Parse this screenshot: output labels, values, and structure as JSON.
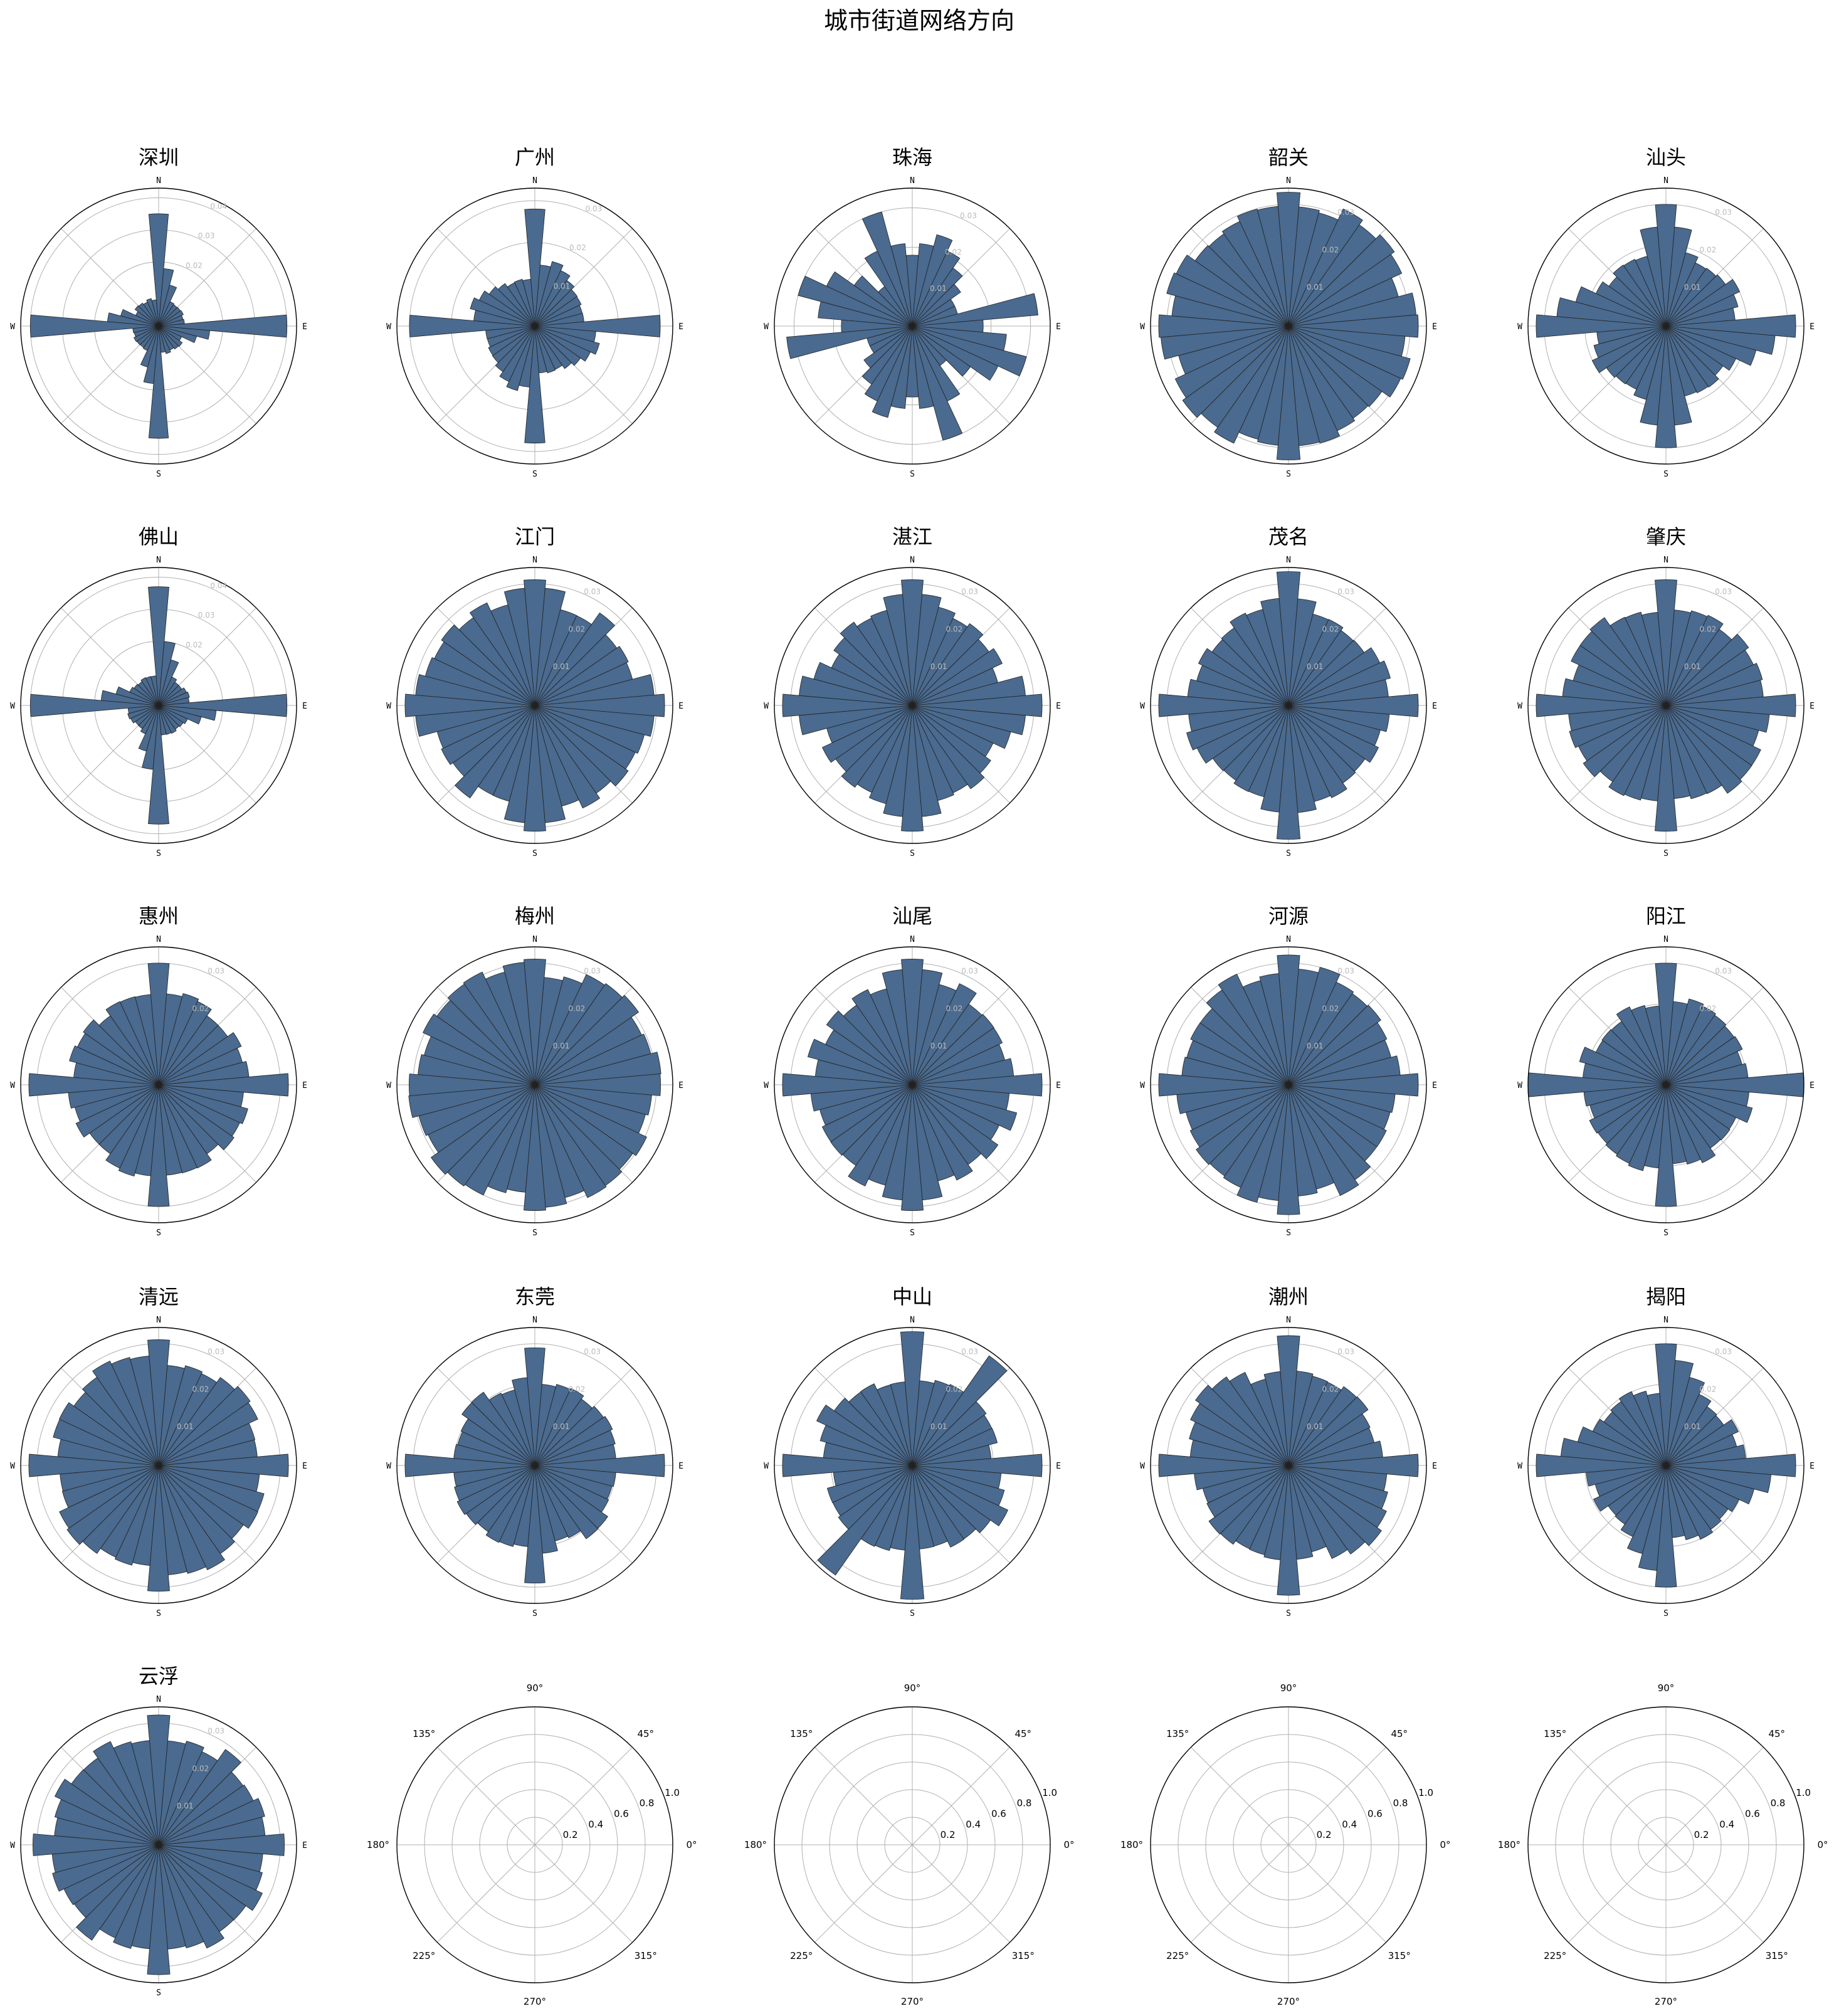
{
  "suptitle": "城市街道网络方向",
  "colors": {
    "bar_fill": "#4a6a8f",
    "bar_edge": "#222222",
    "grid": "#b0b0b0",
    "frame": "#000000",
    "radial_label": "#bbbbbb"
  },
  "compass_labels": [
    "N",
    "E",
    "S",
    "W"
  ],
  "empty_axis": {
    "angle_ticks": [
      "0°",
      "45°",
      "90°",
      "135°",
      "180°",
      "225°",
      "270°",
      "315°"
    ],
    "radial_ticks": [
      "0.2",
      "0.4",
      "0.6",
      "0.8",
      "1.0"
    ]
  },
  "chart_data": [
    {
      "type": "bar",
      "city": "深圳",
      "ylim": [
        0,
        0.043
      ],
      "radial_ticks": [
        "0.02",
        "0.03",
        "0.04"
      ],
      "profile": {
        "base": 0.0085,
        "spikes": [
          [
            0,
            0.035,
            1
          ],
          [
            90,
            0.04,
            1
          ],
          [
            180,
            0.035,
            1
          ],
          [
            270,
            0.04,
            1
          ],
          [
            10,
            0.018,
            2
          ],
          [
            100,
            0.016,
            2
          ]
        ]
      }
    },
    {
      "type": "bar",
      "city": "广州",
      "ylim": [
        0,
        0.033
      ],
      "radial_ticks": [
        "0.01",
        "0.02",
        "0.03"
      ],
      "profile": {
        "base": 0.012,
        "spikes": [
          [
            0,
            0.028,
            1
          ],
          [
            90,
            0.03,
            1
          ],
          [
            180,
            0.028,
            1
          ],
          [
            270,
            0.03,
            1
          ],
          [
            20,
            0.016,
            3
          ],
          [
            110,
            0.016,
            3
          ]
        ]
      }
    },
    {
      "type": "bar",
      "city": "珠海",
      "ylim": [
        0,
        0.035
      ],
      "radial_ticks": [
        "0.01",
        "0.02",
        "0.03"
      ],
      "profile": {
        "base": 0.012,
        "spikes": [
          [
            20,
            0.024,
            4
          ],
          [
            110,
            0.03,
            3
          ],
          [
            200,
            0.024,
            4
          ],
          [
            290,
            0.03,
            3
          ],
          [
            80,
            0.032,
            1
          ],
          [
            260,
            0.032,
            1
          ],
          [
            160,
            0.03,
            2
          ],
          [
            340,
            0.03,
            2
          ]
        ]
      }
    },
    {
      "type": "bar",
      "city": "韶关",
      "ylim": [
        0,
        0.034
      ],
      "radial_ticks": [
        "0.01",
        "0.02",
        "0.03"
      ],
      "profile": {
        "base": 0.0305,
        "spikes": [
          [
            0,
            0.033,
            1
          ],
          [
            90,
            0.032,
            1
          ],
          [
            180,
            0.033,
            1
          ],
          [
            270,
            0.032,
            1
          ]
        ]
      }
    },
    {
      "type": "bar",
      "city": "汕头",
      "ylim": [
        0,
        0.034
      ],
      "radial_ticks": [
        "0.01",
        "0.02",
        "0.03"
      ],
      "profile": {
        "base": 0.019,
        "spikes": [
          [
            0,
            0.03,
            2
          ],
          [
            90,
            0.032,
            1
          ],
          [
            180,
            0.03,
            2
          ],
          [
            270,
            0.032,
            1
          ],
          [
            100,
            0.027,
            2
          ],
          [
            280,
            0.027,
            2
          ]
        ]
      }
    },
    {
      "type": "bar",
      "city": "佛山",
      "ylim": [
        0,
        0.043
      ],
      "radial_ticks": [
        "0.02",
        "0.03",
        "0.04"
      ],
      "profile": {
        "base": 0.0095,
        "spikes": [
          [
            0,
            0.037,
            1
          ],
          [
            90,
            0.04,
            1
          ],
          [
            180,
            0.037,
            1
          ],
          [
            270,
            0.04,
            1
          ],
          [
            10,
            0.02,
            2
          ],
          [
            100,
            0.018,
            2
          ]
        ]
      }
    },
    {
      "type": "bar",
      "city": "江门",
      "ylim": [
        0,
        0.034
      ],
      "radial_ticks": [
        "0.01",
        "0.02",
        "0.03"
      ],
      "profile": {
        "base": 0.027,
        "spikes": [
          [
            0,
            0.031,
            2
          ],
          [
            90,
            0.032,
            2
          ],
          [
            180,
            0.031,
            2
          ],
          [
            270,
            0.032,
            2
          ]
        ]
      }
    },
    {
      "type": "bar",
      "city": "湛江",
      "ylim": [
        0,
        0.034
      ],
      "radial_ticks": [
        "0.01",
        "0.02",
        "0.03"
      ],
      "profile": {
        "base": 0.024,
        "spikes": [
          [
            0,
            0.031,
            2
          ],
          [
            90,
            0.032,
            2
          ],
          [
            180,
            0.031,
            2
          ],
          [
            270,
            0.032,
            2
          ]
        ]
      }
    },
    {
      "type": "bar",
      "city": "茂名",
      "ylim": [
        0,
        0.034
      ],
      "radial_ticks": [
        "0.01",
        "0.02",
        "0.03"
      ],
      "profile": {
        "base": 0.025,
        "spikes": [
          [
            0,
            0.033,
            1
          ],
          [
            90,
            0.032,
            1
          ],
          [
            180,
            0.033,
            1
          ],
          [
            270,
            0.032,
            1
          ]
        ]
      }
    },
    {
      "type": "bar",
      "city": "肇庆",
      "ylim": [
        0,
        0.034
      ],
      "radial_ticks": [
        "0.01",
        "0.02",
        "0.03"
      ],
      "profile": {
        "base": 0.025,
        "spikes": [
          [
            0,
            0.031,
            1
          ],
          [
            90,
            0.032,
            1
          ],
          [
            180,
            0.031,
            1
          ],
          [
            270,
            0.032,
            1
          ]
        ]
      }
    },
    {
      "type": "bar",
      "city": "惠州",
      "ylim": [
        0,
        0.034
      ],
      "radial_ticks": [
        "0.02",
        "0.03"
      ],
      "profile": {
        "base": 0.022,
        "spikes": [
          [
            0,
            0.03,
            1
          ],
          [
            90,
            0.032,
            1
          ],
          [
            180,
            0.03,
            1
          ],
          [
            270,
            0.032,
            1
          ]
        ]
      }
    },
    {
      "type": "bar",
      "city": "梅州",
      "ylim": [
        0,
        0.034
      ],
      "radial_ticks": [
        "0.01",
        "0.02",
        "0.03"
      ],
      "profile": {
        "base": 0.0295,
        "spikes": [
          [
            0,
            0.031,
            1
          ],
          [
            90,
            0.031,
            1
          ],
          [
            180,
            0.031,
            1
          ],
          [
            270,
            0.031,
            1
          ]
        ]
      }
    },
    {
      "type": "bar",
      "city": "汕尾",
      "ylim": [
        0,
        0.034
      ],
      "radial_ticks": [
        "0.01",
        "0.02",
        "0.03"
      ],
      "profile": {
        "base": 0.026,
        "spikes": [
          [
            0,
            0.031,
            2
          ],
          [
            90,
            0.032,
            1
          ],
          [
            180,
            0.031,
            2
          ],
          [
            270,
            0.032,
            1
          ]
        ]
      }
    },
    {
      "type": "bar",
      "city": "河源",
      "ylim": [
        0,
        0.034
      ],
      "radial_ticks": [
        "0.01",
        "0.02",
        "0.03"
      ],
      "profile": {
        "base": 0.0285,
        "spikes": [
          [
            0,
            0.032,
            1
          ],
          [
            90,
            0.032,
            1
          ],
          [
            180,
            0.032,
            1
          ],
          [
            270,
            0.032,
            1
          ]
        ]
      }
    },
    {
      "type": "bar",
      "city": "阳江",
      "ylim": [
        0,
        0.034
      ],
      "radial_ticks": [
        "0.02",
        "0.03"
      ],
      "profile": {
        "base": 0.021,
        "spikes": [
          [
            0,
            0.03,
            1
          ],
          [
            90,
            0.034,
            1
          ],
          [
            180,
            0.03,
            1
          ],
          [
            270,
            0.034,
            1
          ]
        ]
      }
    },
    {
      "type": "bar",
      "city": "清远",
      "ylim": [
        0,
        0.034
      ],
      "radial_ticks": [
        "0.01",
        "0.02",
        "0.03"
      ],
      "profile": {
        "base": 0.027,
        "spikes": [
          [
            0,
            0.031,
            1
          ],
          [
            90,
            0.032,
            1
          ],
          [
            180,
            0.031,
            1
          ],
          [
            270,
            0.032,
            1
          ]
        ]
      }
    },
    {
      "type": "bar",
      "city": "东莞",
      "ylim": [
        0,
        0.034
      ],
      "radial_ticks": [
        "0.01",
        "0.02",
        "0.03"
      ],
      "profile": {
        "base": 0.021,
        "spikes": [
          [
            0,
            0.029,
            1
          ],
          [
            90,
            0.032,
            1
          ],
          [
            180,
            0.029,
            1
          ],
          [
            270,
            0.032,
            1
          ]
        ]
      }
    },
    {
      "type": "bar",
      "city": "中山",
      "ylim": [
        0,
        0.034
      ],
      "radial_ticks": [
        "0.01",
        "0.02",
        "0.03"
      ],
      "profile": {
        "base": 0.021,
        "spikes": [
          [
            0,
            0.033,
            1
          ],
          [
            90,
            0.032,
            1
          ],
          [
            180,
            0.033,
            1
          ],
          [
            270,
            0.032,
            1
          ],
          [
            40,
            0.033,
            1
          ],
          [
            220,
            0.033,
            1
          ],
          [
            120,
            0.026,
            2
          ]
        ]
      }
    },
    {
      "type": "bar",
      "city": "潮州",
      "ylim": [
        0,
        0.034
      ],
      "radial_ticks": [
        "0.01",
        "0.02",
        "0.03"
      ],
      "profile": {
        "base": 0.024,
        "spikes": [
          [
            0,
            0.032,
            1
          ],
          [
            90,
            0.032,
            1
          ],
          [
            180,
            0.032,
            1
          ],
          [
            270,
            0.032,
            1
          ],
          [
            130,
            0.028,
            3
          ],
          [
            310,
            0.028,
            3
          ]
        ]
      }
    },
    {
      "type": "bar",
      "city": "揭阳",
      "ylim": [
        0,
        0.034
      ],
      "radial_ticks": [
        "0.01",
        "0.02",
        "0.03"
      ],
      "profile": {
        "base": 0.019,
        "spikes": [
          [
            0,
            0.03,
            1
          ],
          [
            90,
            0.032,
            1
          ],
          [
            180,
            0.03,
            1
          ],
          [
            270,
            0.032,
            1
          ],
          [
            10,
            0.026,
            2
          ],
          [
            100,
            0.026,
            2
          ]
        ]
      }
    },
    {
      "type": "bar",
      "city": "云浮",
      "ylim": [
        0,
        0.034
      ],
      "radial_ticks": [
        "0.01",
        "0.02",
        "0.03"
      ],
      "profile": {
        "base": 0.028,
        "spikes": [
          [
            0,
            0.032,
            1
          ],
          [
            90,
            0.031,
            1
          ],
          [
            180,
            0.032,
            1
          ],
          [
            270,
            0.031,
            1
          ]
        ]
      }
    }
  ]
}
